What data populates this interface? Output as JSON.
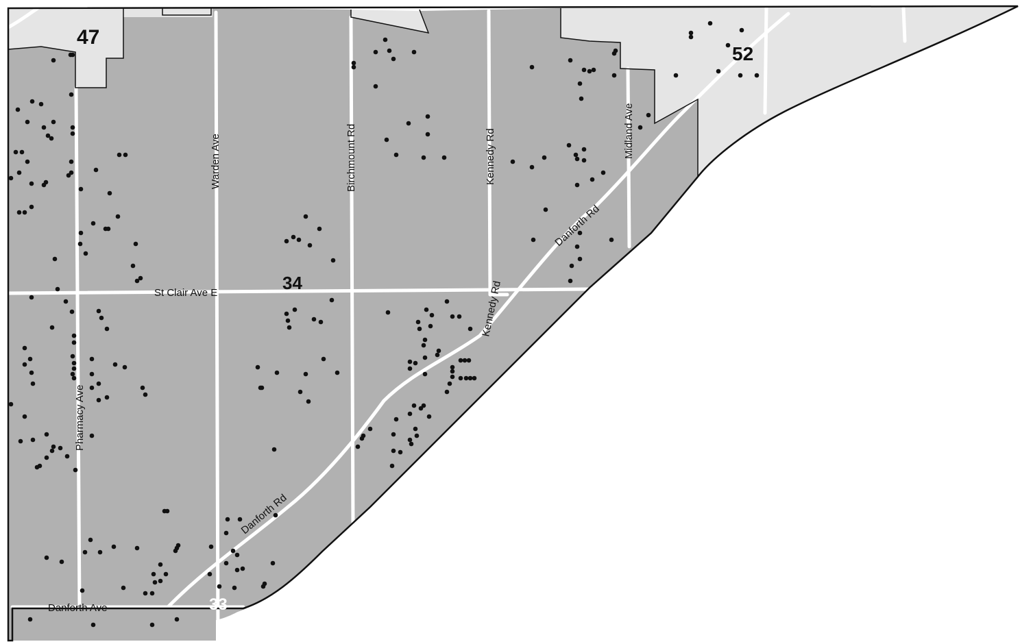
{
  "colors": {
    "background": "#ffffff",
    "district_34": "#b1b1b1",
    "district_neighbor": "#e5e5e5",
    "district_33": "#9c9c9c",
    "road": "#ffffff",
    "point": "#111111",
    "outline": "#111111"
  },
  "districts": {
    "d34": "34",
    "d47": "47",
    "d52": "52",
    "d33": "33"
  },
  "streets": {
    "pharmacy": "Pharmacy Ave",
    "warden": "Warden Ave",
    "birchmount": "Birchmount Rd",
    "kennedy_north": "Kennedy Rd",
    "kennedy_south": "Kennedy Rd",
    "midland": "Midland Ave",
    "st_clair": "St Clair Ave E",
    "danforth_rd_north": "Danforth Rd",
    "danforth_rd_south": "Danforth Rd",
    "danforth_ave": "Danforth Ave"
  }
}
